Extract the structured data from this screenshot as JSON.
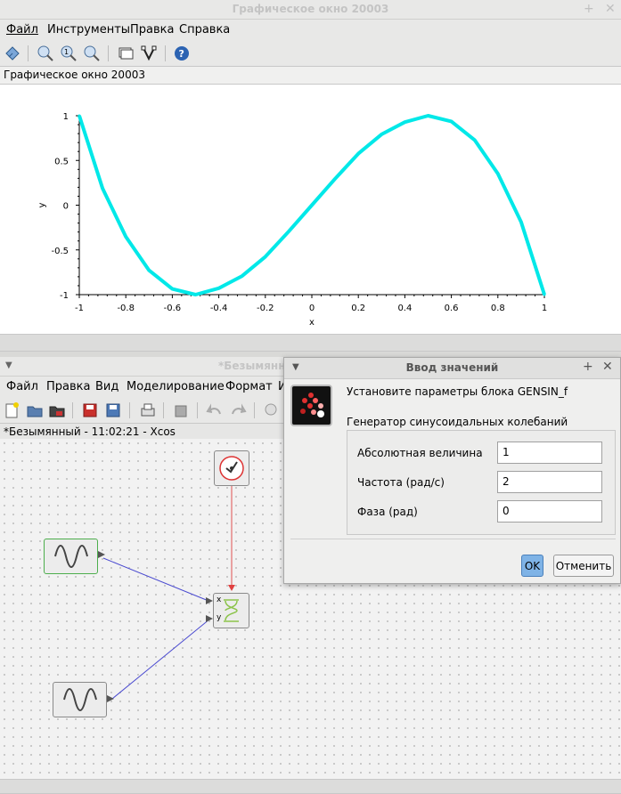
{
  "graphics_window": {
    "title": "Графическое окно 20003",
    "menu": [
      "Файл",
      "Инструменты",
      "Правка",
      "Справка"
    ],
    "subtitle": "Графическое окно 20003"
  },
  "chart_data": {
    "type": "line",
    "xlabel": "x",
    "ylabel": "y",
    "xlim": [
      -1,
      1
    ],
    "ylim": [
      -1,
      1
    ],
    "xticks": [
      "-1",
      "-0.8",
      "-0.6",
      "-0.4",
      "-0.2",
      "0",
      "0.2",
      "0.4",
      "0.6",
      "0.8",
      "1"
    ],
    "yticks": [
      "1",
      "0.5",
      "0",
      "-0.5",
      "-1"
    ],
    "series": [
      {
        "color": "#00e8e8",
        "x": [
          -1,
          -0.9,
          -0.8,
          -0.7,
          -0.6,
          -0.5,
          -0.4,
          -0.3,
          -0.2,
          -0.1,
          0,
          0.1,
          0.2,
          0.3,
          0.4,
          0.5,
          0.6,
          0.7,
          0.8,
          0.9,
          1
        ],
        "y": [
          1,
          0.188,
          -0.352,
          -0.728,
          -0.936,
          -1,
          -0.928,
          -0.792,
          -0.576,
          -0.296,
          0,
          0.296,
          0.576,
          0.792,
          0.928,
          1,
          0.936,
          0.728,
          0.352,
          -0.188,
          -1
        ]
      }
    ],
    "grid": false
  },
  "xcos_window": {
    "title": "*Безымянн",
    "menu": [
      "Файл",
      "Правка",
      "Вид",
      "Моделирование",
      "Формат",
      "И"
    ],
    "tab": "*Безымянный - 11:02:21 - Xcos"
  },
  "dialog": {
    "title": "Ввод значений",
    "prompt": "Установите параметры блока GENSIN_f",
    "group": "Генератор синусоидальных колебаний",
    "fields": [
      {
        "label": "Абсолютная величина",
        "value": "1"
      },
      {
        "label": "Частота (рад/с)",
        "value": "2"
      },
      {
        "label": "Фаза (рад)",
        "value": "0"
      }
    ],
    "ok": "OK",
    "cancel": "Отменить"
  },
  "scope_ports": {
    "x": "x",
    "y": "y"
  }
}
